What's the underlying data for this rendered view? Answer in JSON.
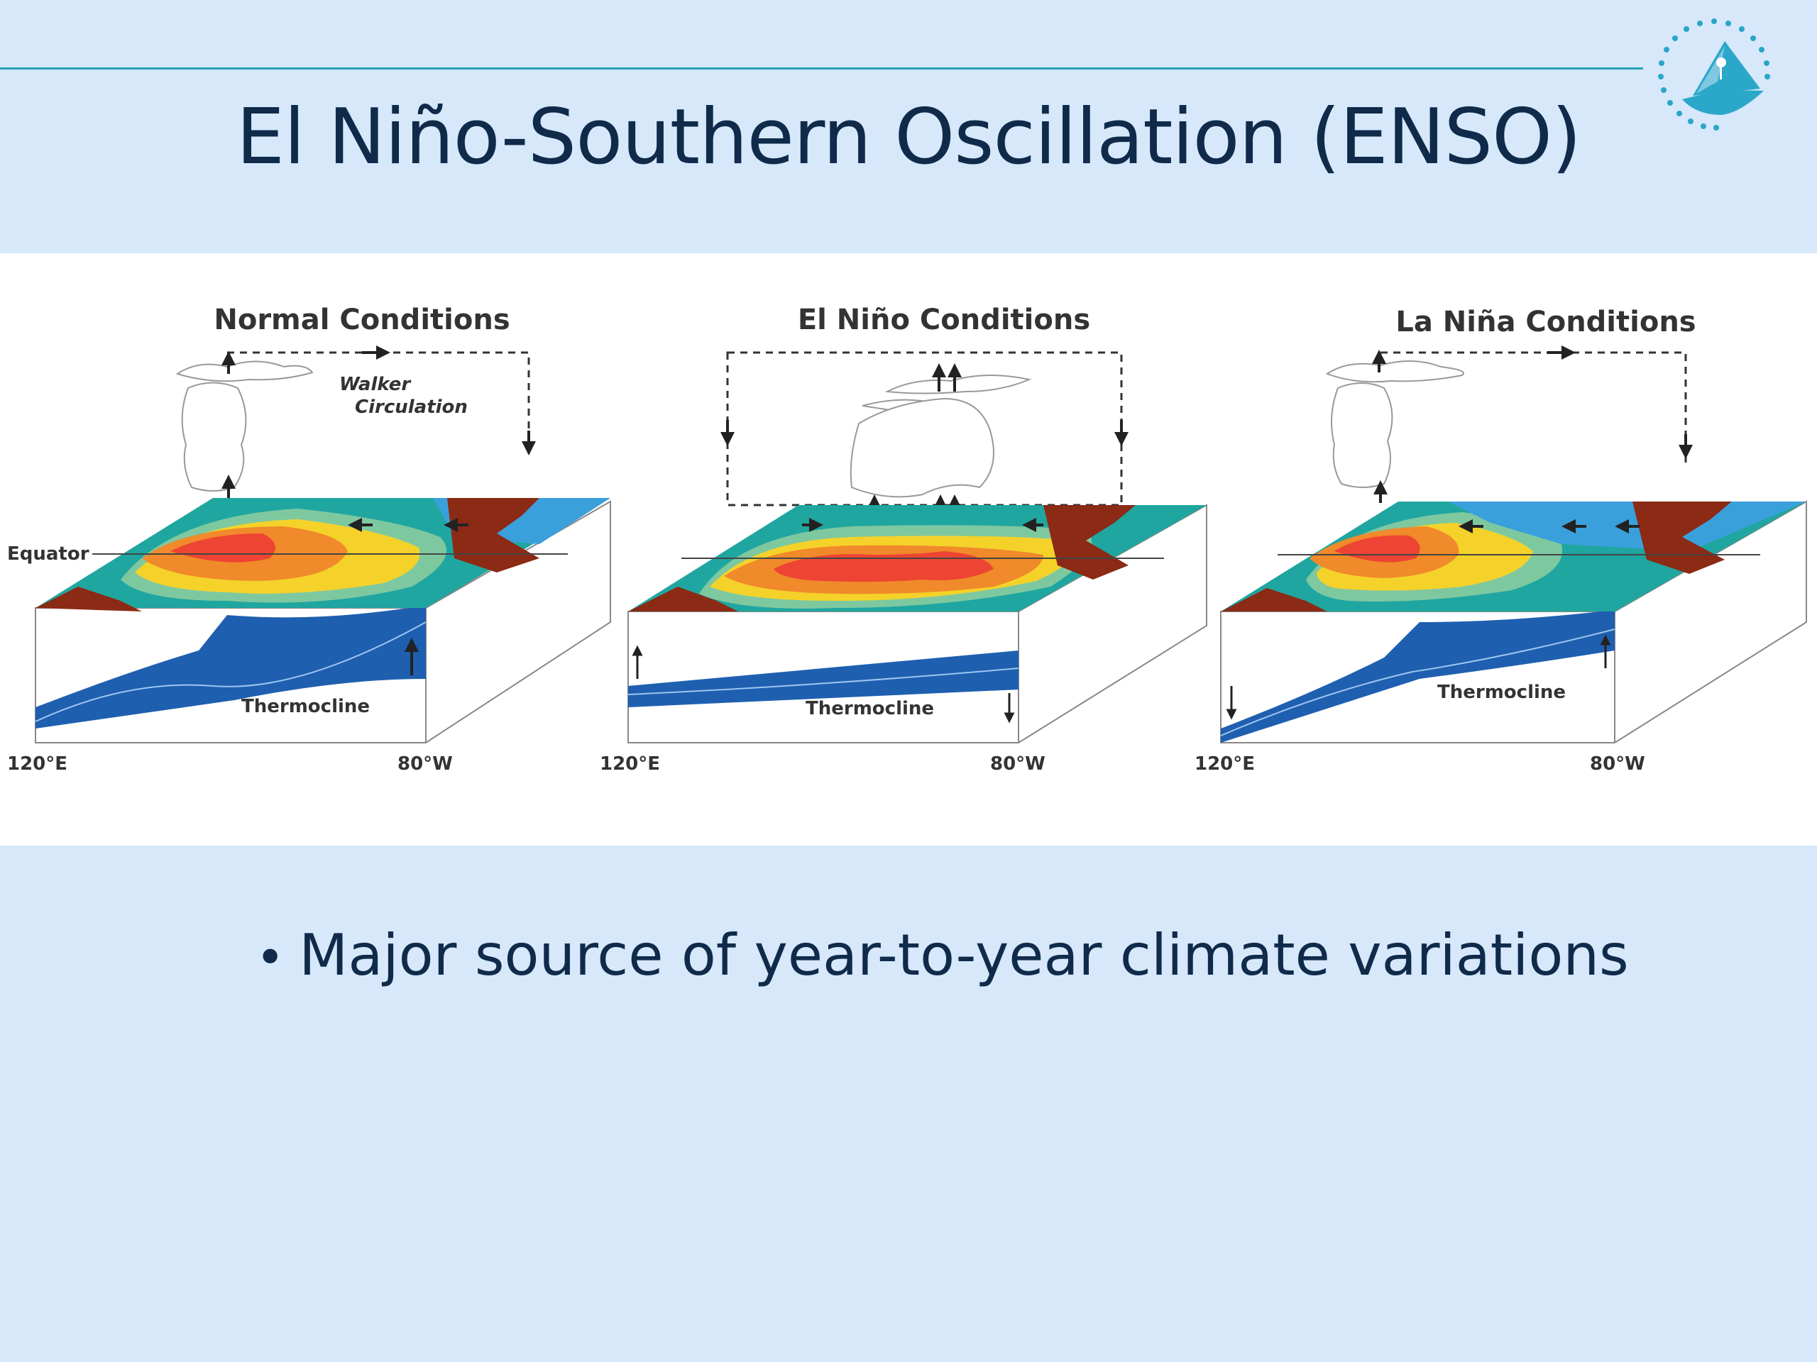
{
  "slide": {
    "title": "El Niño-Southern Oscillation (ENSO)",
    "bullet": "Major source of year-to-year climate variations"
  },
  "figure": {
    "panels": [
      {
        "title": "Normal Conditions",
        "circulation_label_1": "Walker",
        "circulation_label_2": "Circulation",
        "equator_label": "Equator",
        "thermocline_label": "Thermocline",
        "left_longitude": "120°E",
        "right_longitude": "80°W"
      },
      {
        "title": "El Niño Conditions",
        "thermocline_label": "Thermocline",
        "left_longitude": "120°E",
        "right_longitude": "80°W"
      },
      {
        "title": "La Niña Conditions",
        "thermocline_label": "Thermocline",
        "left_longitude": "120°E",
        "right_longitude": "80°W"
      }
    ]
  },
  "colors": {
    "background": "#d6e8fa",
    "title_text": "#102a4a",
    "rule": "#2aa2b7",
    "land": "#8b2a15",
    "ocean_deep": "#1f5fb0",
    "warm_core": "#ee4433",
    "warm": "#f08a2a",
    "mild": "#f5d22a",
    "cool": "#7ec8a0",
    "cold": "#20a6a0",
    "coldest": "#3aa0dc"
  }
}
